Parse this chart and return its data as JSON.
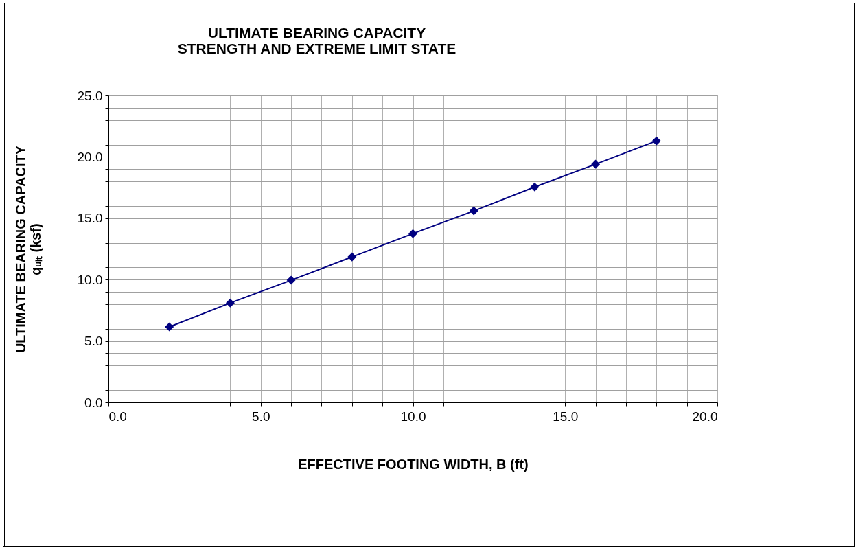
{
  "chart_data": {
    "type": "line",
    "title": "ULTIMATE BEARING  CAPACITY\nSTRENGTH AND EXTREME LIMIT STATE",
    "xlabel": "EFFECTIVE FOOTING WIDTH, B (ft)",
    "ylabel": "ULTIMATE  BEARING CAPACITY\nqᵤₗₜ (ksf)",
    "x": [
      2,
      4,
      6,
      8,
      10,
      12,
      14,
      16,
      18
    ],
    "series": [
      {
        "color": "#000080",
        "values": [
          6.15,
          8.1,
          9.95,
          11.85,
          13.75,
          15.6,
          17.55,
          19.4,
          21.3
        ]
      }
    ],
    "xlim": [
      0,
      20
    ],
    "ylim": [
      0,
      25
    ],
    "xticks": [
      {
        "value": 0,
        "label": "0.0"
      },
      {
        "value": 1,
        "label": null
      },
      {
        "value": 2,
        "label": null
      },
      {
        "value": 3,
        "label": null
      },
      {
        "value": 4,
        "label": null
      },
      {
        "value": 5,
        "label": "5.0"
      },
      {
        "value": 6,
        "label": null
      },
      {
        "value": 7,
        "label": null
      },
      {
        "value": 8,
        "label": null
      },
      {
        "value": 9,
        "label": null
      },
      {
        "value": 10,
        "label": "10.0"
      },
      {
        "value": 11,
        "label": null
      },
      {
        "value": 12,
        "label": null
      },
      {
        "value": 13,
        "label": null
      },
      {
        "value": 14,
        "label": null
      },
      {
        "value": 15,
        "label": "15.0"
      },
      {
        "value": 16,
        "label": null
      },
      {
        "value": 17,
        "label": null
      },
      {
        "value": 18,
        "label": null
      },
      {
        "value": 19,
        "label": null
      },
      {
        "value": 20,
        "label": "20.0"
      }
    ],
    "yticks": [
      {
        "value": 0,
        "label": "0.0"
      },
      {
        "value": 1,
        "label": null
      },
      {
        "value": 2,
        "label": null
      },
      {
        "value": 3,
        "label": null
      },
      {
        "value": 4,
        "label": null
      },
      {
        "value": 5,
        "label": "5.0"
      },
      {
        "value": 6,
        "label": null
      },
      {
        "value": 7,
        "label": null
      },
      {
        "value": 8,
        "label": null
      },
      {
        "value": 9,
        "label": null
      },
      {
        "value": 10,
        "label": "10.0"
      },
      {
        "value": 11,
        "label": null
      },
      {
        "value": 12,
        "label": null
      },
      {
        "value": 13,
        "label": null
      },
      {
        "value": 14,
        "label": null
      },
      {
        "value": 15,
        "label": "15.0"
      },
      {
        "value": 16,
        "label": null
      },
      {
        "value": 17,
        "label": null
      },
      {
        "value": 18,
        "label": null
      },
      {
        "value": 19,
        "label": null
      },
      {
        "value": 20,
        "label": "20.0"
      },
      {
        "value": 21,
        "label": null
      },
      {
        "value": 22,
        "label": null
      },
      {
        "value": 23,
        "label": null
      },
      {
        "value": 24,
        "label": null
      },
      {
        "value": 25,
        "label": "25.0"
      }
    ],
    "grid": true,
    "legend": false,
    "marker": "diamond",
    "line_style": "solid"
  }
}
